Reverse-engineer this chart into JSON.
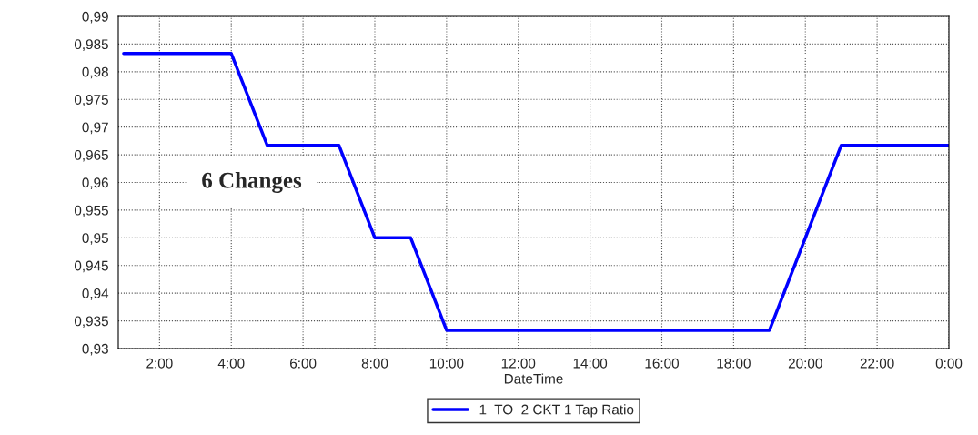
{
  "chart_data": {
    "type": "line",
    "xlabel": "DateTime",
    "x": [
      1,
      4,
      5,
      7,
      8,
      9,
      10,
      19,
      21,
      24
    ],
    "series": [
      {
        "name": "1  TO  2 CKT 1 Tap Ratio",
        "color": "#0000ff",
        "values": [
          0.9833,
          0.9833,
          0.9667,
          0.9667,
          0.95,
          0.95,
          0.9333,
          0.9333,
          0.9667,
          0.9667
        ]
      }
    ],
    "xlim": [
      0.85,
      24
    ],
    "xticks": [
      {
        "value": 2,
        "label": "2:00"
      },
      {
        "value": 4,
        "label": "4:00"
      },
      {
        "value": 6,
        "label": "6:00"
      },
      {
        "value": 8,
        "label": "8:00"
      },
      {
        "value": 10,
        "label": "10:00"
      },
      {
        "value": 12,
        "label": "12:00"
      },
      {
        "value": 14,
        "label": "14:00"
      },
      {
        "value": 16,
        "label": "16:00"
      },
      {
        "value": 18,
        "label": "18:00"
      },
      {
        "value": 20,
        "label": "20:00"
      },
      {
        "value": 22,
        "label": "22:00"
      },
      {
        "value": 24,
        "label": "0:00"
      }
    ],
    "ylim": [
      0.93,
      0.99
    ],
    "yticks": [
      {
        "value": 0.93,
        "label": "0,93"
      },
      {
        "value": 0.935,
        "label": "0,935"
      },
      {
        "value": 0.94,
        "label": "0,94"
      },
      {
        "value": 0.945,
        "label": "0,945"
      },
      {
        "value": 0.95,
        "label": "0,95"
      },
      {
        "value": 0.955,
        "label": "0,955"
      },
      {
        "value": 0.96,
        "label": "0,96"
      },
      {
        "value": 0.965,
        "label": "0,965"
      },
      {
        "value": 0.97,
        "label": "0,97"
      },
      {
        "value": 0.975,
        "label": "0,975"
      },
      {
        "value": 0.98,
        "label": "0,98"
      },
      {
        "value": 0.985,
        "label": "0,985"
      },
      {
        "value": 0.99,
        "label": "0,99"
      }
    ],
    "annotations": [
      "6 Changes"
    ],
    "grid": true,
    "legend": "bottom",
    "marker": "none",
    "line_style": "solid"
  }
}
